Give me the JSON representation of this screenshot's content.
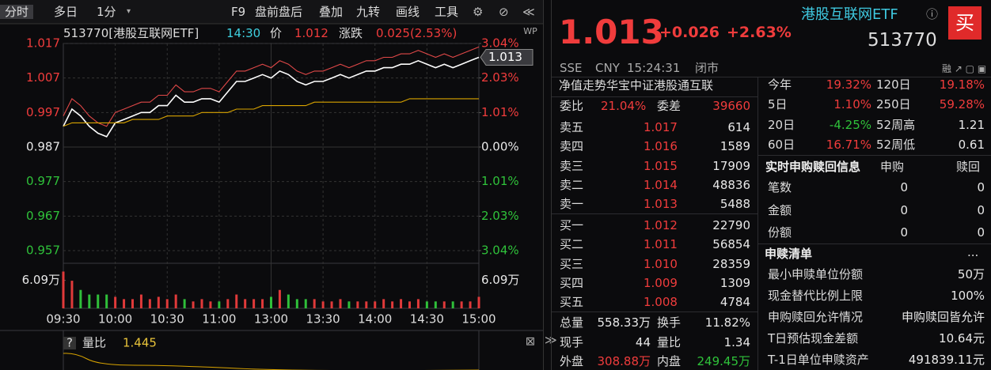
{
  "toolbar": {
    "tabs": [
      "分时",
      "多日",
      "1分"
    ],
    "tools": [
      "F9",
      "盘前盘后",
      "叠加",
      "九转",
      "画线",
      "工具"
    ]
  },
  "chart_data": {
    "type": "line",
    "title": "513770[港股互联网ETF]",
    "info": {
      "time": "14:30",
      "price_label": "价",
      "price": "1.012",
      "change_label": "涨跌",
      "change": "0.025(2.53%)"
    },
    "x_labels": [
      "09:30",
      "10:00",
      "10:30",
      "11:00",
      "13:00",
      "13:30",
      "14:00",
      "14:30",
      "15:00"
    ],
    "series": [
      {
        "color": "#e04848",
        "values": [
          0.996,
          1.001,
          0.999,
          0.996,
          0.994,
          0.993,
          0.997,
          0.998,
          0.999,
          1.0,
          1.0,
          1.002,
          1.002,
          1.005,
          1.003,
          1.003,
          1.004,
          1.004,
          1.003,
          1.006,
          1.009,
          1.009,
          1.01,
          1.011,
          1.01,
          1.012,
          1.011,
          1.009,
          1.008,
          1.009,
          1.009,
          1.01,
          1.011,
          1.01,
          1.011,
          1.012,
          1.012,
          1.013,
          1.013,
          1.014,
          1.014,
          1.015,
          1.014,
          1.013,
          1.014,
          1.013,
          1.014,
          1.015,
          1.016
        ]
      },
      {
        "color": "#ffffff",
        "values": [
          0.993,
          0.998,
          0.996,
          0.993,
          0.991,
          0.99,
          0.994,
          0.995,
          0.996,
          0.997,
          0.997,
          0.999,
          0.999,
          1.002,
          1.0,
          1.0,
          1.001,
          1.001,
          1.0,
          1.003,
          1.006,
          1.006,
          1.007,
          1.008,
          1.007,
          1.009,
          1.008,
          1.006,
          1.005,
          1.006,
          1.006,
          1.007,
          1.008,
          1.007,
          1.008,
          1.009,
          1.009,
          1.01,
          1.01,
          1.011,
          1.011,
          1.012,
          1.011,
          1.01,
          1.011,
          1.01,
          1.011,
          1.012,
          1.013
        ]
      },
      {
        "color": "#d9a400",
        "values": [
          0.993,
          0.994,
          0.994,
          0.994,
          0.994,
          0.994,
          0.994,
          0.994,
          0.995,
          0.995,
          0.995,
          0.995,
          0.996,
          0.996,
          0.996,
          0.996,
          0.997,
          0.997,
          0.997,
          0.997,
          0.998,
          0.998,
          0.998,
          0.999,
          0.999,
          0.999,
          0.999,
          0.999,
          0.999,
          1.0,
          1.0,
          1.0,
          1.0,
          1.0,
          1.0,
          1.0,
          1.0,
          1.0,
          1.0,
          1.0,
          1.001,
          1.001,
          1.001,
          1.001,
          1.001,
          1.001,
          1.001,
          1.001,
          1.001
        ]
      }
    ],
    "ylim": [
      0.957,
      1.017
    ],
    "yticks": [
      1.017,
      1.007,
      0.997,
      0.987,
      0.977,
      0.967,
      0.957
    ],
    "y2lim": [
      -3.04,
      3.04
    ],
    "y2ticks": [
      {
        "value": 3.04,
        "label": "3.04%"
      },
      {
        "value": 2.03,
        "label": "2.03%"
      },
      {
        "value": 1.01,
        "label": "1.01%"
      },
      {
        "value": 0,
        "label": "0.00%"
      },
      {
        "value": -1.01,
        "label": "1.01%"
      },
      {
        "value": -2.03,
        "label": "2.03%"
      },
      {
        "value": -3.04,
        "label": "3.04%"
      }
    ],
    "last_label": "1.013",
    "volume": {
      "values": [
        8,
        6,
        4,
        3,
        3,
        3,
        2.5,
        2,
        2,
        3,
        2,
        2.5,
        2,
        3,
        2,
        1.5,
        2,
        1.5,
        1.5,
        2,
        3,
        2,
        2,
        2,
        2.5,
        4,
        3,
        2,
        2,
        2,
        1.5,
        1.5,
        2,
        1.5,
        1.5,
        1.5,
        1.5,
        2,
        1.5,
        2,
        1.5,
        2,
        1.5,
        1.5,
        1.5,
        1.5,
        1.5,
        1.5,
        2.5
      ],
      "ylim": [
        0,
        11
      ],
      "yticks": [
        {
          "value": 6.09,
          "label": "6.09万"
        }
      ],
      "up_color": "#e03a3a",
      "down_color": "#2fbf3a"
    },
    "sub": {
      "label": "量比",
      "value": "1.445"
    }
  },
  "quote": {
    "price": "1.013",
    "change": "+0.026",
    "pct": "+2.63%",
    "name": "港股互联网ETF",
    "code": "513770",
    "buy": "买",
    "meta": [
      "SSE",
      "CNY",
      "15:24:31",
      "闭市"
    ],
    "nav_title": "净值走势华宝中证港股通互联",
    "ratio": [
      "委比",
      "21.04%",
      "委差",
      "39660"
    ],
    "asks": [
      [
        "卖五",
        "1.017",
        "614"
      ],
      [
        "卖四",
        "1.016",
        "1589"
      ],
      [
        "卖三",
        "1.015",
        "17909"
      ],
      [
        "卖二",
        "1.014",
        "48836"
      ],
      [
        "卖一",
        "1.013",
        "5488"
      ]
    ],
    "bids": [
      [
        "买一",
        "1.012",
        "22790"
      ],
      [
        "买二",
        "1.011",
        "56854"
      ],
      [
        "买三",
        "1.010",
        "28359"
      ],
      [
        "买四",
        "1.009",
        "1309"
      ],
      [
        "买五",
        "1.008",
        "4784"
      ]
    ],
    "stats": [
      [
        "总量",
        "558.33万",
        "换手",
        "11.82%"
      ],
      [
        "现手",
        "44",
        "量比",
        "1.34"
      ],
      [
        "外盘",
        "308.88万",
        "内盘",
        "249.45万"
      ]
    ],
    "perf": [
      [
        "今年",
        "19.32%",
        "120日",
        "19.18%"
      ],
      [
        "5日",
        "1.10%",
        "250日",
        "59.28%"
      ],
      [
        "20日",
        "-4.25%",
        "52周高",
        "1.21"
      ],
      [
        "60日",
        "16.71%",
        "52周低",
        "0.61"
      ]
    ],
    "creation": {
      "title": "实时申购赎回信息",
      "cols": [
        "申购",
        "赎回"
      ],
      "rows": [
        [
          "笔数",
          "0",
          "0"
        ],
        [
          "金额",
          "0",
          "0"
        ],
        [
          "份额",
          "0",
          "0"
        ]
      ]
    },
    "list": {
      "title": "申赎清单",
      "more": "...",
      "rows": [
        [
          "最小申赎单位份额",
          "50万"
        ],
        [
          "现金替代比例上限",
          "100%"
        ],
        [
          "申购赎回允许情况",
          "申购赎回皆允许"
        ],
        [
          "T日预估现金差额",
          "10.64元"
        ],
        [
          "T-1日单位申赎资产",
          "491839.11元"
        ]
      ]
    }
  }
}
